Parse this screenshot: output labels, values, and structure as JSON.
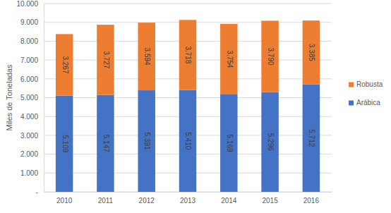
{
  "chart_data": {
    "type": "bar",
    "stacked": true,
    "data_labels": true,
    "grid": true,
    "legend": "right",
    "y_label": "Miles de Toneladas",
    "categories": [
      "2010",
      "2011",
      "2012",
      "2013",
      "2014",
      "2015",
      "2016"
    ],
    "series": [
      {
        "name": "Arábica",
        "color": "#4472c4",
        "values": [
          5109,
          5147,
          5391,
          5410,
          5169,
          5296,
          5712
        ],
        "value_labels": [
          "5.109",
          "5.147",
          "5.391",
          "5.410",
          "5.169",
          "5.296",
          "5.712"
        ]
      },
      {
        "name": "Robusta",
        "color": "#ed7d31",
        "values": [
          3267,
          3727,
          3594,
          3718,
          3754,
          3790,
          3385
        ],
        "value_labels": [
          "3.267",
          "3.727",
          "3.594",
          "3.718",
          "3.754",
          "3.790",
          "3.385"
        ]
      }
    ],
    "ylim": [
      0,
      10000
    ],
    "yticks": [
      {
        "value": 0,
        "label": "-"
      },
      {
        "value": 1000,
        "label": "1.000"
      },
      {
        "value": 2000,
        "label": "2.000"
      },
      {
        "value": 3000,
        "label": "3.000"
      },
      {
        "value": 4000,
        "label": "4.000"
      },
      {
        "value": 5000,
        "label": "5.000"
      },
      {
        "value": 6000,
        "label": "6.000"
      },
      {
        "value": 7000,
        "label": "7.000"
      },
      {
        "value": 8000,
        "label": "8.000"
      },
      {
        "value": 9000,
        "label": "9.000"
      },
      {
        "value": 10000,
        "label": "10.000"
      }
    ]
  }
}
